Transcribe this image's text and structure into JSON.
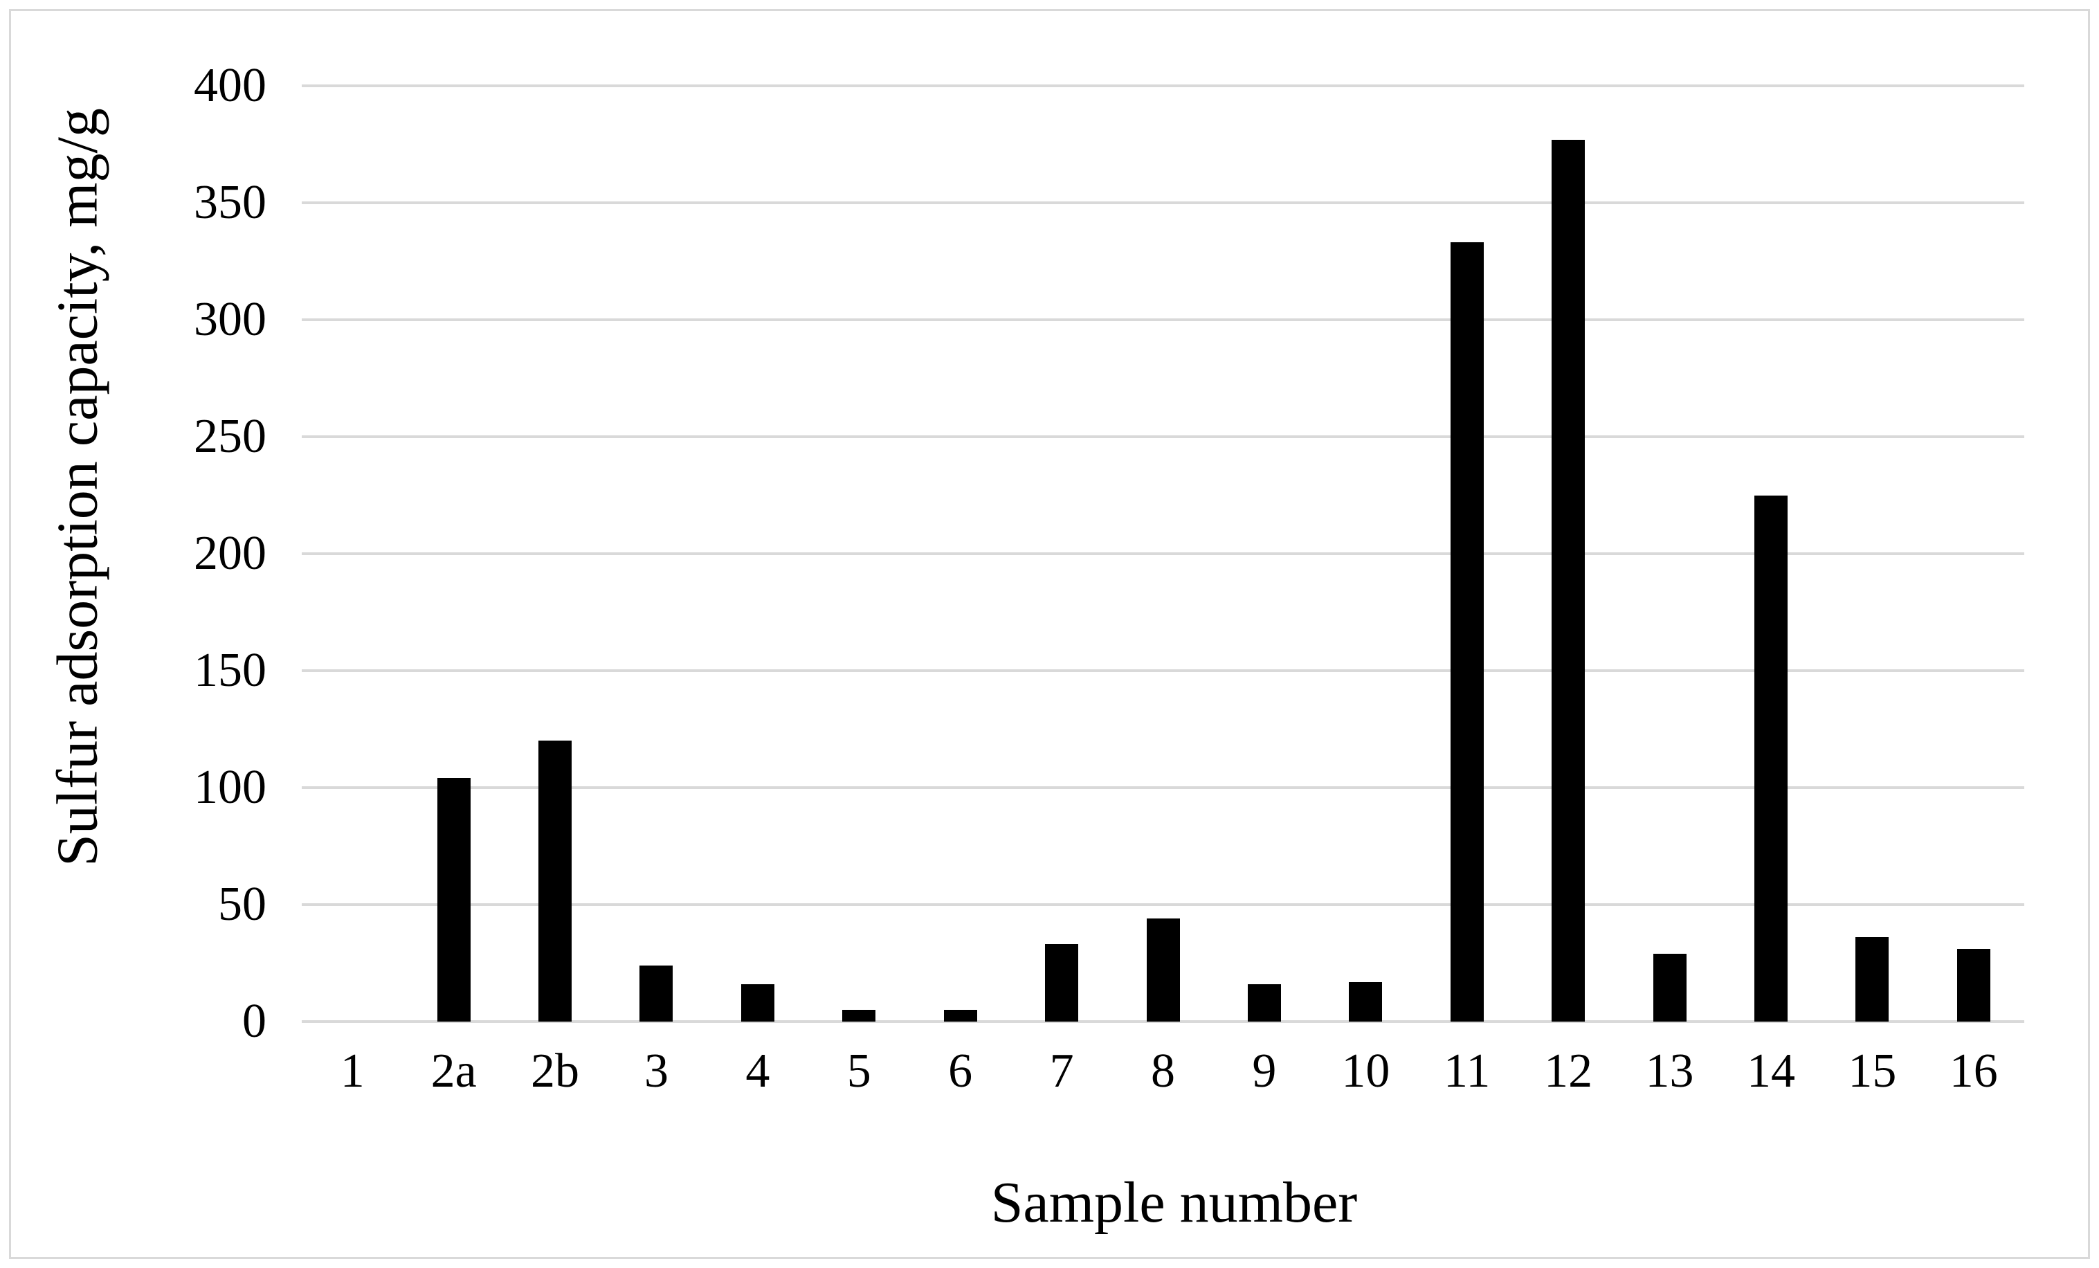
{
  "chart_data": {
    "type": "bar",
    "title": "",
    "categories": [
      "1",
      "2a",
      "2b",
      "3",
      "4",
      "5",
      "6",
      "7",
      "8",
      "9",
      "10",
      "11",
      "12",
      "13",
      "14",
      "15",
      "16"
    ],
    "values": [
      0,
      104,
      120,
      24,
      16,
      5,
      5,
      33,
      44,
      16,
      17,
      333,
      377,
      29,
      225,
      36,
      31
    ],
    "xlabel": "Sample number",
    "ylabel": "Sulfur adsorption capacity, mg/g",
    "ylim": [
      0,
      400
    ],
    "yticks": [
      0,
      50,
      100,
      150,
      200,
      250,
      300,
      350,
      400
    ],
    "grid": "horizontal",
    "legend_position": "none",
    "colors": {
      "bar": "#000000",
      "gridline": "#d9d9d9",
      "frame_border": "#d9d9d9",
      "text": "#000000",
      "background": "#ffffff"
    }
  }
}
